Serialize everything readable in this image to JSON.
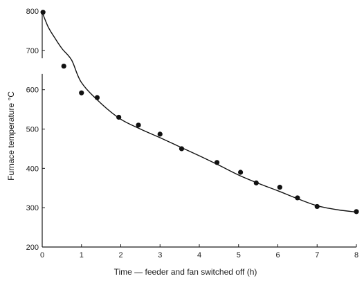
{
  "chart_data": {
    "type": "scatter",
    "xlabel": "Time — feeder and fan switched off (h)",
    "ylabel": "Furnace temperature °C",
    "xlim": [
      0,
      8
    ],
    "ylim": [
      200,
      800
    ],
    "x_ticks": [
      "0",
      "1",
      "2",
      "3",
      "4",
      "5",
      "6",
      "7",
      "8"
    ],
    "y_ticks": [
      "200",
      "300",
      "400",
      "500",
      "600",
      "700",
      "800"
    ],
    "grid": false,
    "axis_break": {
      "axis": "y",
      "between": [
        640,
        680
      ]
    },
    "series": [
      {
        "x": [
          0.02,
          0.55,
          1.0,
          1.4,
          1.95,
          2.45,
          3.0,
          3.55,
          4.45,
          5.05,
          5.45,
          6.05,
          6.5,
          7.0,
          8.0
        ],
        "y": [
          797,
          660,
          592,
          580,
          530,
          510,
          487,
          450,
          415,
          390,
          363,
          352,
          325,
          303,
          290
        ]
      }
    ],
    "fit_curve": {
      "x": [
        0,
        0.15,
        0.3,
        0.5,
        0.75,
        1.0,
        1.5,
        2.0,
        2.5,
        3.0,
        3.5,
        4.0,
        4.5,
        5.0,
        5.5,
        6.0,
        6.5,
        7.0,
        7.5,
        8.0
      ],
      "y": [
        797,
        760,
        735,
        705,
        675,
        618,
        565,
        525,
        500,
        478,
        455,
        432,
        408,
        383,
        362,
        343,
        323,
        305,
        295,
        289
      ]
    }
  }
}
